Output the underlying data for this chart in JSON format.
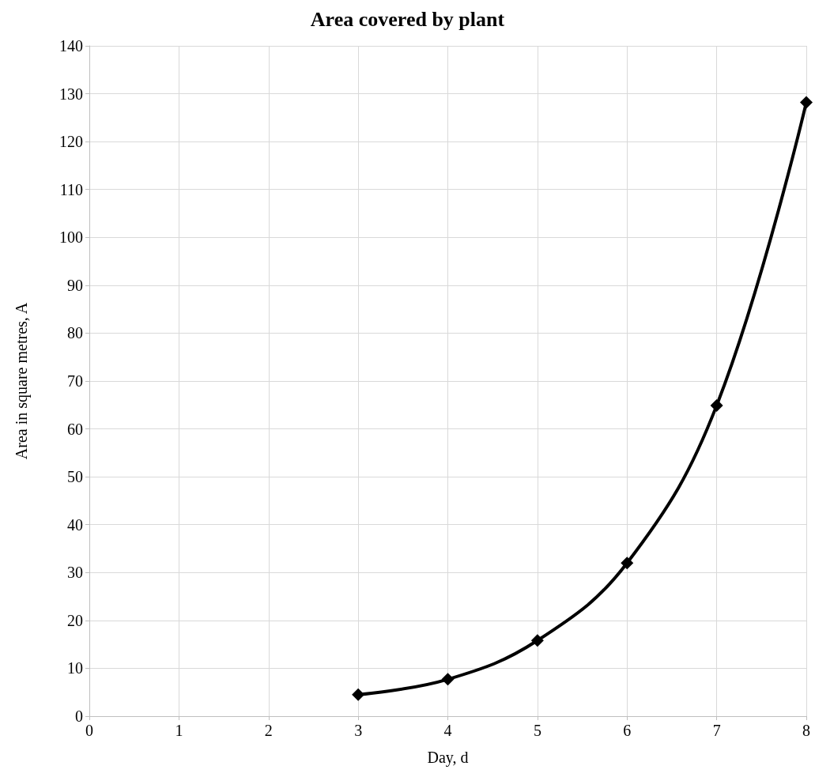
{
  "chart_data": {
    "type": "line",
    "title": "Area covered by plant",
    "xlabel": "Day, d",
    "ylabel": "Area in square metres, A",
    "x": [
      3,
      4,
      5,
      6,
      7,
      8
    ],
    "series": [
      {
        "color": "#000000",
        "values": [
          4.5,
          7.7,
          15.8,
          32,
          64.9,
          128.2
        ]
      }
    ],
    "xlim": [
      0,
      8
    ],
    "xticks": [
      0,
      1,
      2,
      3,
      4,
      5,
      6,
      7,
      8
    ],
    "ylim": [
      0,
      140
    ],
    "yticks": [
      0,
      10,
      20,
      30,
      40,
      50,
      60,
      70,
      80,
      90,
      100,
      110,
      120,
      130,
      140
    ],
    "grid": true,
    "marker": "diamond",
    "line_style": "solid"
  }
}
